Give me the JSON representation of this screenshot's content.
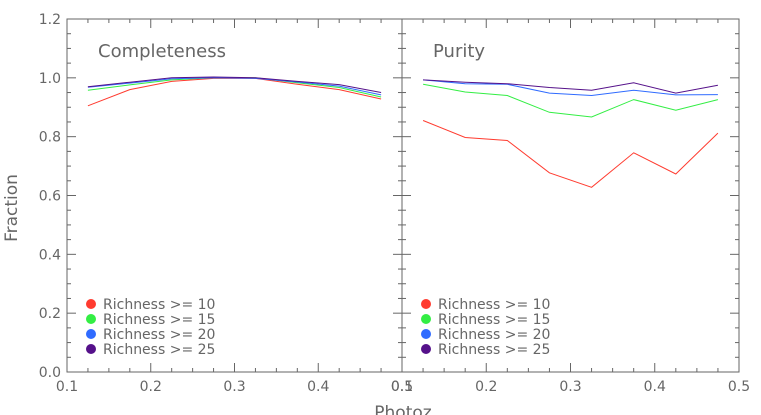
{
  "chart_data": {
    "type": "line",
    "ylabel": "Fraction",
    "xlabel": "Photoz",
    "xlim": [
      0.1,
      0.5
    ],
    "ylim": [
      0.0,
      1.2
    ],
    "x_ticks": [
      0.1,
      0.2,
      0.3,
      0.4,
      0.5
    ],
    "x_tick_labels": [
      "0.1",
      "0.2",
      "0.3",
      "0.4",
      "0.5"
    ],
    "y_ticks": [
      0.0,
      0.2,
      0.4,
      0.6,
      0.8,
      1.0,
      1.2
    ],
    "y_tick_labels": [
      "0.0",
      "0.2",
      "0.4",
      "0.6",
      "0.8",
      "1.0",
      "1.2"
    ],
    "grid": false,
    "legend_placement": "bottom-left",
    "x": [
      0.125,
      0.175,
      0.225,
      0.275,
      0.325,
      0.375,
      0.425,
      0.475
    ],
    "panels": [
      {
        "title": "Completeness",
        "series": [
          {
            "name": "Richness >= 10",
            "color": "#ff3b2f",
            "values": [
              0.905,
              0.96,
              0.988,
              0.998,
              0.998,
              0.978,
              0.96,
              0.928
            ]
          },
          {
            "name": "Richness >= 15",
            "color": "#33ee44",
            "values": [
              0.958,
              0.976,
              0.993,
              1.0,
              1.0,
              0.983,
              0.967,
              0.935
            ]
          },
          {
            "name": "Richness >= 20",
            "color": "#2f6bff",
            "values": [
              0.968,
              0.982,
              0.997,
              1.0,
              0.998,
              0.986,
              0.972,
              0.942
            ]
          },
          {
            "name": "Richness >= 25",
            "color": "#55118a",
            "values": [
              0.97,
              0.985,
              1.0,
              1.003,
              1.0,
              0.988,
              0.977,
              0.95
            ]
          }
        ]
      },
      {
        "title": "Purity",
        "series": [
          {
            "name": "Richness >= 10",
            "color": "#ff3b2f",
            "values": [
              0.855,
              0.797,
              0.787,
              0.677,
              0.628,
              0.745,
              0.673,
              0.812
            ]
          },
          {
            "name": "Richness >= 15",
            "color": "#33ee44",
            "values": [
              0.978,
              0.952,
              0.94,
              0.883,
              0.867,
              0.926,
              0.89,
              0.926
            ]
          },
          {
            "name": "Richness >= 20",
            "color": "#2f6bff",
            "values": [
              0.993,
              0.98,
              0.978,
              0.948,
              0.94,
              0.958,
              0.942,
              0.943
            ]
          },
          {
            "name": "Richness >= 25",
            "color": "#55118a",
            "values": [
              0.993,
              0.985,
              0.98,
              0.967,
              0.958,
              0.983,
              0.948,
              0.975
            ]
          }
        ]
      }
    ]
  }
}
